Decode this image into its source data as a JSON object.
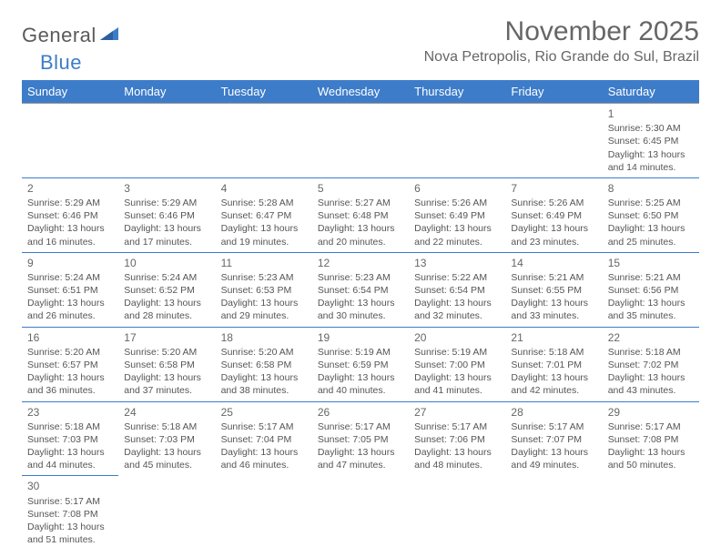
{
  "logo": {
    "general": "General",
    "blue": "Blue"
  },
  "title": "November 2025",
  "location": "Nova Petropolis, Rio Grande do Sul, Brazil",
  "colors": {
    "header_bg": "#3d7cc9",
    "row_border": "#3d7cc9",
    "text": "#555555",
    "title": "#666666"
  },
  "weekdays": [
    "Sunday",
    "Monday",
    "Tuesday",
    "Wednesday",
    "Thursday",
    "Friday",
    "Saturday"
  ],
  "weeks": [
    [
      null,
      null,
      null,
      null,
      null,
      null,
      {
        "n": "1",
        "sr": "Sunrise: 5:30 AM",
        "ss": "Sunset: 6:45 PM",
        "d1": "Daylight: 13 hours",
        "d2": "and 14 minutes."
      }
    ],
    [
      {
        "n": "2",
        "sr": "Sunrise: 5:29 AM",
        "ss": "Sunset: 6:46 PM",
        "d1": "Daylight: 13 hours",
        "d2": "and 16 minutes."
      },
      {
        "n": "3",
        "sr": "Sunrise: 5:29 AM",
        "ss": "Sunset: 6:46 PM",
        "d1": "Daylight: 13 hours",
        "d2": "and 17 minutes."
      },
      {
        "n": "4",
        "sr": "Sunrise: 5:28 AM",
        "ss": "Sunset: 6:47 PM",
        "d1": "Daylight: 13 hours",
        "d2": "and 19 minutes."
      },
      {
        "n": "5",
        "sr": "Sunrise: 5:27 AM",
        "ss": "Sunset: 6:48 PM",
        "d1": "Daylight: 13 hours",
        "d2": "and 20 minutes."
      },
      {
        "n": "6",
        "sr": "Sunrise: 5:26 AM",
        "ss": "Sunset: 6:49 PM",
        "d1": "Daylight: 13 hours",
        "d2": "and 22 minutes."
      },
      {
        "n": "7",
        "sr": "Sunrise: 5:26 AM",
        "ss": "Sunset: 6:49 PM",
        "d1": "Daylight: 13 hours",
        "d2": "and 23 minutes."
      },
      {
        "n": "8",
        "sr": "Sunrise: 5:25 AM",
        "ss": "Sunset: 6:50 PM",
        "d1": "Daylight: 13 hours",
        "d2": "and 25 minutes."
      }
    ],
    [
      {
        "n": "9",
        "sr": "Sunrise: 5:24 AM",
        "ss": "Sunset: 6:51 PM",
        "d1": "Daylight: 13 hours",
        "d2": "and 26 minutes."
      },
      {
        "n": "10",
        "sr": "Sunrise: 5:24 AM",
        "ss": "Sunset: 6:52 PM",
        "d1": "Daylight: 13 hours",
        "d2": "and 28 minutes."
      },
      {
        "n": "11",
        "sr": "Sunrise: 5:23 AM",
        "ss": "Sunset: 6:53 PM",
        "d1": "Daylight: 13 hours",
        "d2": "and 29 minutes."
      },
      {
        "n": "12",
        "sr": "Sunrise: 5:23 AM",
        "ss": "Sunset: 6:54 PM",
        "d1": "Daylight: 13 hours",
        "d2": "and 30 minutes."
      },
      {
        "n": "13",
        "sr": "Sunrise: 5:22 AM",
        "ss": "Sunset: 6:54 PM",
        "d1": "Daylight: 13 hours",
        "d2": "and 32 minutes."
      },
      {
        "n": "14",
        "sr": "Sunrise: 5:21 AM",
        "ss": "Sunset: 6:55 PM",
        "d1": "Daylight: 13 hours",
        "d2": "and 33 minutes."
      },
      {
        "n": "15",
        "sr": "Sunrise: 5:21 AM",
        "ss": "Sunset: 6:56 PM",
        "d1": "Daylight: 13 hours",
        "d2": "and 35 minutes."
      }
    ],
    [
      {
        "n": "16",
        "sr": "Sunrise: 5:20 AM",
        "ss": "Sunset: 6:57 PM",
        "d1": "Daylight: 13 hours",
        "d2": "and 36 minutes."
      },
      {
        "n": "17",
        "sr": "Sunrise: 5:20 AM",
        "ss": "Sunset: 6:58 PM",
        "d1": "Daylight: 13 hours",
        "d2": "and 37 minutes."
      },
      {
        "n": "18",
        "sr": "Sunrise: 5:20 AM",
        "ss": "Sunset: 6:58 PM",
        "d1": "Daylight: 13 hours",
        "d2": "and 38 minutes."
      },
      {
        "n": "19",
        "sr": "Sunrise: 5:19 AM",
        "ss": "Sunset: 6:59 PM",
        "d1": "Daylight: 13 hours",
        "d2": "and 40 minutes."
      },
      {
        "n": "20",
        "sr": "Sunrise: 5:19 AM",
        "ss": "Sunset: 7:00 PM",
        "d1": "Daylight: 13 hours",
        "d2": "and 41 minutes."
      },
      {
        "n": "21",
        "sr": "Sunrise: 5:18 AM",
        "ss": "Sunset: 7:01 PM",
        "d1": "Daylight: 13 hours",
        "d2": "and 42 minutes."
      },
      {
        "n": "22",
        "sr": "Sunrise: 5:18 AM",
        "ss": "Sunset: 7:02 PM",
        "d1": "Daylight: 13 hours",
        "d2": "and 43 minutes."
      }
    ],
    [
      {
        "n": "23",
        "sr": "Sunrise: 5:18 AM",
        "ss": "Sunset: 7:03 PM",
        "d1": "Daylight: 13 hours",
        "d2": "and 44 minutes."
      },
      {
        "n": "24",
        "sr": "Sunrise: 5:18 AM",
        "ss": "Sunset: 7:03 PM",
        "d1": "Daylight: 13 hours",
        "d2": "and 45 minutes."
      },
      {
        "n": "25",
        "sr": "Sunrise: 5:17 AM",
        "ss": "Sunset: 7:04 PM",
        "d1": "Daylight: 13 hours",
        "d2": "and 46 minutes."
      },
      {
        "n": "26",
        "sr": "Sunrise: 5:17 AM",
        "ss": "Sunset: 7:05 PM",
        "d1": "Daylight: 13 hours",
        "d2": "and 47 minutes."
      },
      {
        "n": "27",
        "sr": "Sunrise: 5:17 AM",
        "ss": "Sunset: 7:06 PM",
        "d1": "Daylight: 13 hours",
        "d2": "and 48 minutes."
      },
      {
        "n": "28",
        "sr": "Sunrise: 5:17 AM",
        "ss": "Sunset: 7:07 PM",
        "d1": "Daylight: 13 hours",
        "d2": "and 49 minutes."
      },
      {
        "n": "29",
        "sr": "Sunrise: 5:17 AM",
        "ss": "Sunset: 7:08 PM",
        "d1": "Daylight: 13 hours",
        "d2": "and 50 minutes."
      }
    ],
    [
      {
        "n": "30",
        "sr": "Sunrise: 5:17 AM",
        "ss": "Sunset: 7:08 PM",
        "d1": "Daylight: 13 hours",
        "d2": "and 51 minutes."
      },
      null,
      null,
      null,
      null,
      null,
      null
    ]
  ]
}
